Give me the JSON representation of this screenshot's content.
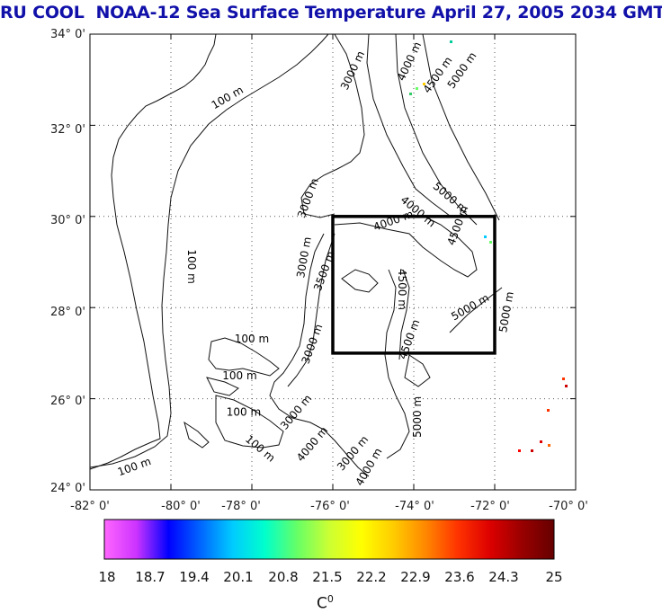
{
  "title": {
    "source": "RU COOL",
    "main": "NOAA-12 Sea Surface Temperature April 27, 2005 2034 GMT"
  },
  "map": {
    "lat_labels": [
      "34° 0'",
      "32° 0'",
      "30° 0'",
      "28° 0'",
      "26° 0'",
      "24° 0'"
    ],
    "lon_labels": [
      "-82° 0'",
      "-80° 0'",
      "-78° 0'",
      "-76° 0'",
      "-74° 0'",
      "-72° 0'",
      "-70° 0'"
    ],
    "lat_range": [
      24,
      34
    ],
    "lon_range": [
      -82,
      -70
    ],
    "study_box": {
      "lon": [
        -76,
        -72
      ],
      "lat": [
        27,
        30
      ]
    },
    "contour_labels": [
      {
        "text": "100 m",
        "lon": -78.6,
        "lat": 32.6,
        "angle": -30
      },
      {
        "text": "100 m",
        "lon": -79.5,
        "lat": 28.9,
        "angle": 90
      },
      {
        "text": "100 m",
        "lon": -78.0,
        "lat": 27.3,
        "angle": 0
      },
      {
        "text": "100 m",
        "lon": -78.3,
        "lat": 26.5,
        "angle": 0
      },
      {
        "text": "100 m",
        "lon": -78.2,
        "lat": 25.7,
        "angle": 0
      },
      {
        "text": "100 m",
        "lon": -77.8,
        "lat": 24.9,
        "angle": 40
      },
      {
        "text": "100 m",
        "lon": -80.9,
        "lat": 24.5,
        "angle": -20
      },
      {
        "text": "3000 m",
        "lon": -75.5,
        "lat": 33.2,
        "angle": -65
      },
      {
        "text": "4000 m",
        "lon": -74.1,
        "lat": 33.4,
        "angle": -65
      },
      {
        "text": "4500 m",
        "lon": -73.4,
        "lat": 33.1,
        "angle": -55
      },
      {
        "text": "5000 m",
        "lon": -72.8,
        "lat": 33.2,
        "angle": -55
      },
      {
        "text": "3000 m",
        "lon": -76.6,
        "lat": 30.4,
        "angle": -70
      },
      {
        "text": "5000 m",
        "lon": -73.1,
        "lat": 30.4,
        "angle": 40
      },
      {
        "text": "4000 m",
        "lon": -73.9,
        "lat": 30.1,
        "angle": 40
      },
      {
        "text": "4500 m",
        "lon": -72.9,
        "lat": 29.8,
        "angle": -70
      },
      {
        "text": "4000 m",
        "lon": -74.5,
        "lat": 29.9,
        "angle": -20
      },
      {
        "text": "3000 m",
        "lon": -76.7,
        "lat": 29.1,
        "angle": -80
      },
      {
        "text": "3500 m",
        "lon": -76.2,
        "lat": 28.8,
        "angle": -70
      },
      {
        "text": "4500 m",
        "lon": -74.3,
        "lat": 28.4,
        "angle": 90
      },
      {
        "text": "5000 m",
        "lon": -72.6,
        "lat": 28.0,
        "angle": -30
      },
      {
        "text": "5000 m",
        "lon": -71.7,
        "lat": 27.9,
        "angle": -80
      },
      {
        "text": "3000 m",
        "lon": -76.5,
        "lat": 27.2,
        "angle": -70
      },
      {
        "text": "4500 m",
        "lon": -74.1,
        "lat": 27.3,
        "angle": -70
      },
      {
        "text": "5000 m",
        "lon": -73.9,
        "lat": 25.6,
        "angle": -90
      },
      {
        "text": "3000 m",
        "lon": -76.9,
        "lat": 25.7,
        "angle": -50
      },
      {
        "text": "4000 m",
        "lon": -76.5,
        "lat": 25.0,
        "angle": -50
      },
      {
        "text": "3000 m",
        "lon": -75.5,
        "lat": 24.8,
        "angle": -50
      },
      {
        "text": "4000 m",
        "lon": -75.1,
        "lat": 24.5,
        "angle": -60
      }
    ]
  },
  "colorbar": {
    "ticks": [
      "18",
      "18.7",
      "19.4",
      "20.1",
      "20.8",
      "21.5",
      "22.2",
      "22.9",
      "23.6",
      "24.3",
      "25"
    ],
    "unit": "C",
    "unit_sup": "0",
    "colors": [
      "#ff66ff",
      "#cc33ff",
      "#0000ff",
      "#0066ff",
      "#00ccff",
      "#00ffcc",
      "#66ff66",
      "#ccff33",
      "#ffff00",
      "#ffcc00",
      "#ff8800",
      "#ff3300",
      "#dd0000",
      "#990000",
      "#660000"
    ]
  }
}
